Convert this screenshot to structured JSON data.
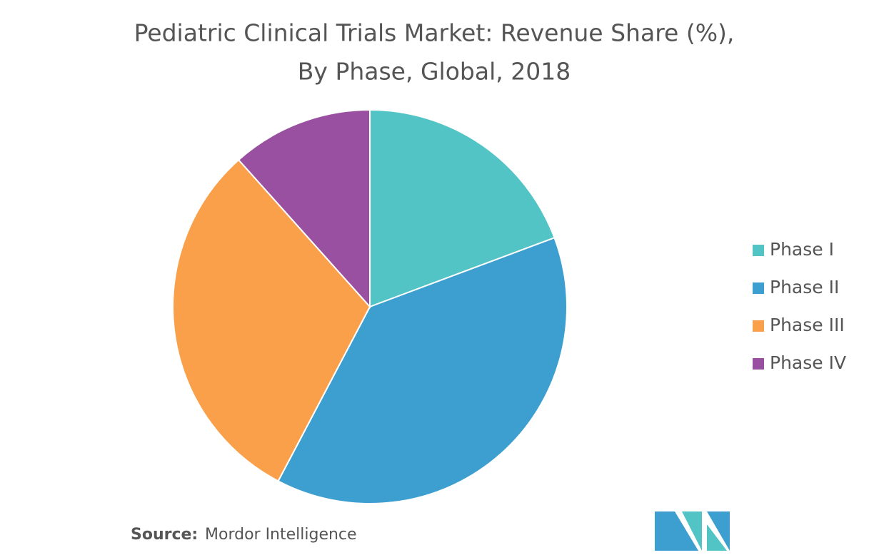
{
  "chart_data": {
    "type": "pie",
    "title_lines": [
      "Pediatric Clinical Trials Market: Revenue Share (%),",
      "By Phase, Global, 2018"
    ],
    "categories": [
      "Phase I",
      "Phase II",
      "Phase III",
      "Phase IV"
    ],
    "values": [
      19.3,
      38.4,
      30.7,
      11.6
    ],
    "colors": [
      "#52c4c6",
      "#3d9fd0",
      "#fba04a",
      "#9a50a0"
    ],
    "legend": "right",
    "source_label": "Source:",
    "source": "Mordor Intelligence"
  }
}
